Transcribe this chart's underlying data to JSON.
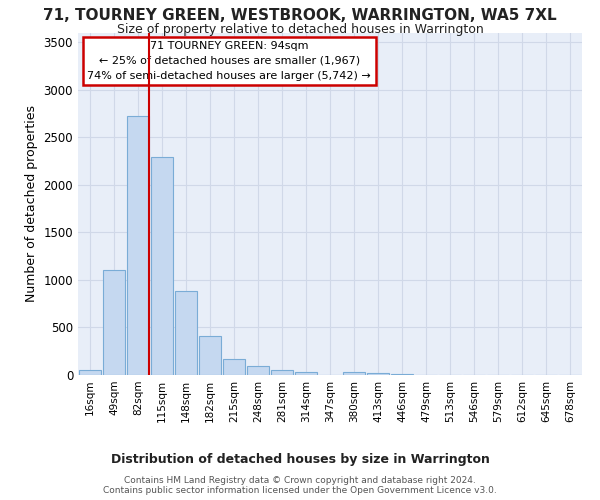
{
  "title": "71, TOURNEY GREEN, WESTBROOK, WARRINGTON, WA5 7XL",
  "subtitle": "Size of property relative to detached houses in Warrington",
  "xlabel": "Distribution of detached houses by size in Warrington",
  "ylabel": "Number of detached properties",
  "bar_labels": [
    "16sqm",
    "49sqm",
    "82sqm",
    "115sqm",
    "148sqm",
    "182sqm",
    "215sqm",
    "248sqm",
    "281sqm",
    "314sqm",
    "347sqm",
    "380sqm",
    "413sqm",
    "446sqm",
    "479sqm",
    "513sqm",
    "546sqm",
    "579sqm",
    "612sqm",
    "645sqm",
    "678sqm"
  ],
  "bar_values": [
    50,
    1100,
    2720,
    2290,
    880,
    415,
    170,
    90,
    55,
    30,
    0,
    30,
    25,
    15,
    0,
    0,
    0,
    0,
    0,
    0,
    0
  ],
  "bar_color": "#c5d8f0",
  "bar_edge_color": "#7aacd6",
  "background_color": "#e8eef8",
  "grid_color": "#d0d8e8",
  "fig_background": "#ffffff",
  "ylim": [
    0,
    3600
  ],
  "yticks": [
    0,
    500,
    1000,
    1500,
    2000,
    2500,
    3000,
    3500
  ],
  "property_label": "71 TOURNEY GREEN: 94sqm",
  "annotation_line1": "← 25% of detached houses are smaller (1,967)",
  "annotation_line2": "74% of semi-detached houses are larger (5,742) →",
  "annotation_box_color": "#ffffff",
  "annotation_border_color": "#cc0000",
  "red_line_bar_index": 2,
  "footer_line1": "Contains HM Land Registry data © Crown copyright and database right 2024.",
  "footer_line2": "Contains public sector information licensed under the Open Government Licence v3.0."
}
